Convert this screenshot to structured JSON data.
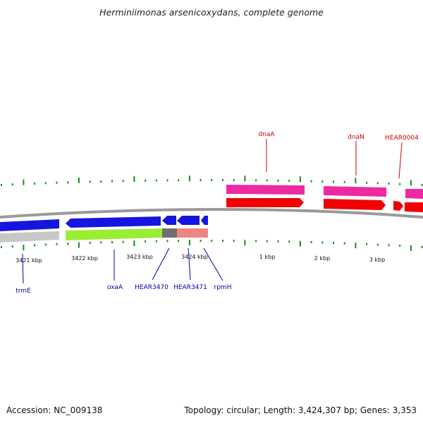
{
  "title": "Herminiimonas arsenicoxydans, complete genome",
  "footer": {
    "accession": "Accession: NC_009138",
    "summary": "Topology: circular; Length: 3,424,307 bp; Genes: 3,353"
  },
  "tick_labels": [
    "3421 kbp",
    "3422 kbp",
    "3423 kbp",
    "3424 kbp",
    "1 kbp",
    "2 kbp",
    "3 kbp"
  ],
  "forward_labels": [
    "dnaA",
    "dnaN",
    "HEAR0004"
  ],
  "reverse_labels": [
    "trmE",
    "oxaA",
    "HEAR3470",
    "HEAR3471",
    "rpmH"
  ],
  "colors": {
    "backbone": "#808080",
    "tick": "#1a8a1a",
    "reverse_gene": "#1515e0",
    "forward_gene": "#f00000",
    "forward_cds_track": "#ee2aa0",
    "rrna_track": "#99ee33",
    "grey_track": "#c8c8c8",
    "dark_grey_track": "#707070",
    "pink_track": "#f08585",
    "forward_label": "#cc0000",
    "reverse_label": "#0000aa"
  }
}
